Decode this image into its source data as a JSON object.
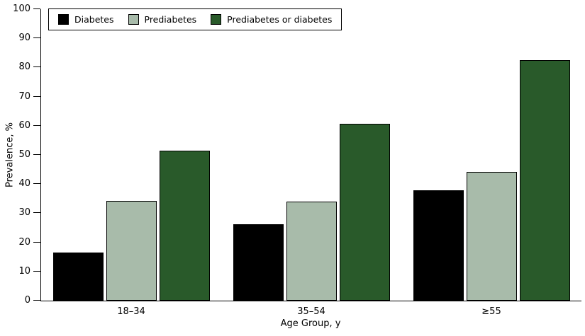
{
  "chart_data": {
    "type": "bar",
    "title": "",
    "categories": [
      "18–34",
      "35–54",
      "≥55"
    ],
    "series": [
      {
        "name": "Diabetes",
        "color": "#000000",
        "values": [
          16.6,
          26.1,
          37.9
        ]
      },
      {
        "name": "Prediabetes",
        "color": "#a8bbaa",
        "values": [
          34.3,
          34.0,
          44.1
        ]
      },
      {
        "name": "Prediabetes or diabetes",
        "color": "#295a2a",
        "values": [
          51.5,
          60.7,
          82.6
        ]
      }
    ],
    "xlabel": "Age Group, y",
    "ylabel": "Prevalence, %",
    "ylim": [
      0,
      100
    ],
    "ytick_step": 10,
    "ytick_labels": [
      "0",
      "10",
      "20",
      "30",
      "40",
      "50",
      "60",
      "70",
      "80",
      "90",
      "100"
    ],
    "grid": false,
    "legend_position": "top-left",
    "axis_color": "#000000"
  }
}
